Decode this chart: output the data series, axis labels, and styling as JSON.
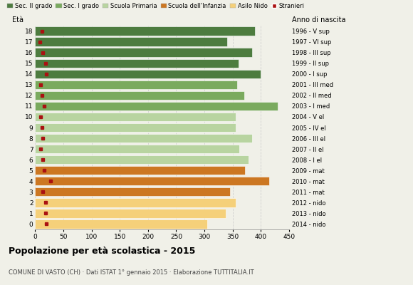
{
  "ages": [
    18,
    17,
    16,
    15,
    14,
    13,
    12,
    11,
    10,
    9,
    8,
    7,
    6,
    5,
    4,
    3,
    2,
    1,
    0
  ],
  "anno_nascita": [
    "1996 - V sup",
    "1997 - VI sup",
    "1998 - III sup",
    "1999 - II sup",
    "2000 - I sup",
    "2001 - III med",
    "2002 - II med",
    "2003 - I med",
    "2004 - V el",
    "2005 - IV el",
    "2006 - III el",
    "2007 - II el",
    "2008 - I el",
    "2009 - mat",
    "2010 - mat",
    "2011 - mat",
    "2012 - nido",
    "2013 - nido",
    "2014 - nido"
  ],
  "bar_values": [
    390,
    340,
    385,
    360,
    400,
    358,
    370,
    430,
    355,
    355,
    385,
    362,
    378,
    372,
    415,
    345,
    356,
    338,
    305
  ],
  "stranieri": [
    12,
    8,
    14,
    18,
    20,
    10,
    12,
    16,
    10,
    12,
    14,
    10,
    14,
    16,
    28,
    14,
    18,
    18,
    20
  ],
  "bar_colors": [
    "#4d7c3f",
    "#4d7c3f",
    "#4d7c3f",
    "#4d7c3f",
    "#4d7c3f",
    "#7aaa5e",
    "#7aaa5e",
    "#7aaa5e",
    "#b8d4a0",
    "#b8d4a0",
    "#b8d4a0",
    "#b8d4a0",
    "#b8d4a0",
    "#cc7722",
    "#cc7722",
    "#cc7722",
    "#f5d07a",
    "#f5d07a",
    "#f5d07a"
  ],
  "title": "Popolazione per età scolastica - 2015",
  "subtitle": "COMUNE DI VASTO (CH) · Dati ISTAT 1° gennaio 2015 · Elaborazione TUTTITALIA.IT",
  "xlim": [
    0,
    450
  ],
  "legend_labels": [
    "Sec. II grado",
    "Sec. I grado",
    "Scuola Primaria",
    "Scuola dell'Infanzia",
    "Asilo Nido",
    "Stranieri"
  ],
  "legend_colors": [
    "#4d7c3f",
    "#7aaa5e",
    "#b8d4a0",
    "#cc7722",
    "#f5d07a",
    "#aa1111"
  ],
  "stranieri_color": "#aa1111",
  "background_color": "#f0f0e8",
  "grid_color": "#cccccc",
  "xticks": [
    0,
    50,
    100,
    150,
    200,
    250,
    300,
    350,
    400,
    450
  ]
}
